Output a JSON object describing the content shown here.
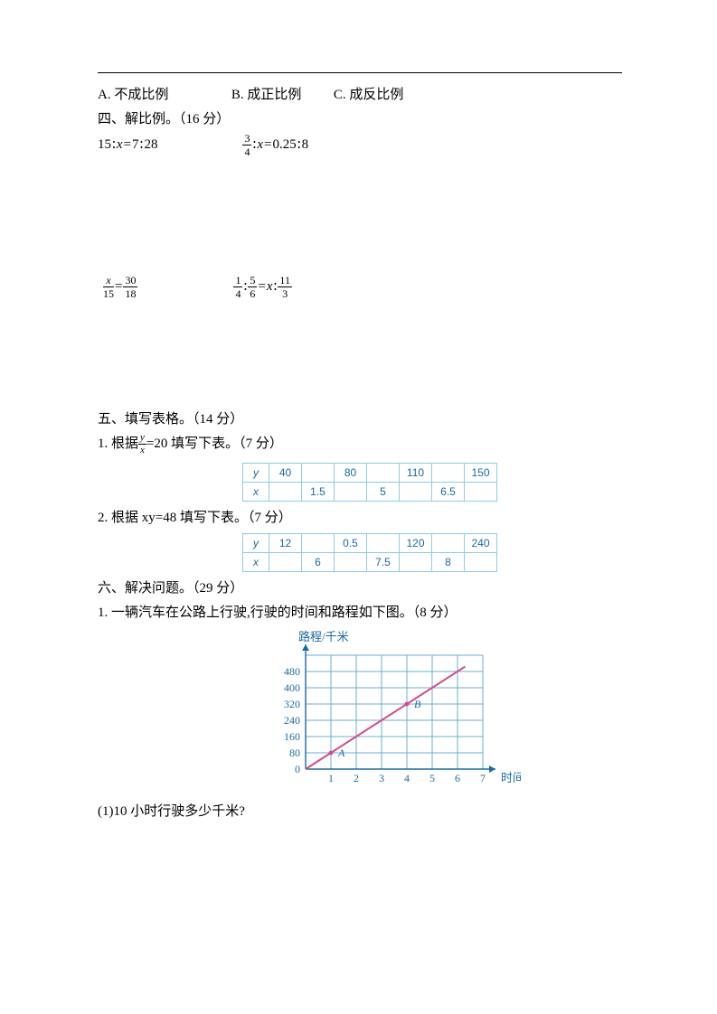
{
  "choices": {
    "a_prefix": "A.",
    "a_text": "不成比例",
    "b_prefix": "B.",
    "b_text": "成正比例",
    "c_prefix": "C.",
    "c_text": "成反比例"
  },
  "section4": {
    "title": "四、解比例。（16 分）",
    "eq1_left": "15",
    "eq1_sep": "∶",
    "eq1_x": "x",
    "eq1_eq": "=",
    "eq1_r1": "7",
    "eq1_r2": "28",
    "eq2_frac_num": "3",
    "eq2_frac_den": "4",
    "eq2_sep": "∶",
    "eq2_x": "x",
    "eq2_eq": "=",
    "eq2_r1": "0.25",
    "eq2_r2": "8",
    "eq3_f1_num": "x",
    "eq3_f1_den": "15",
    "eq3_eq": "=",
    "eq3_f2_num": "30",
    "eq3_f2_den": "18",
    "eq4_f1_num": "1",
    "eq4_f1_den": "4",
    "eq4_sep": "∶",
    "eq4_f2_num": "5",
    "eq4_f2_den": "6",
    "eq4_eq": "=",
    "eq4_x": "x",
    "eq4_f3_num": "11",
    "eq4_f3_den": "3"
  },
  "section5": {
    "title": "五、填写表格。（14 分）",
    "q1_prefix": "1. 根据",
    "q1_frac_num": "y",
    "q1_frac_den": "x",
    "q1_suffix": "=20 填写下表。（7 分）",
    "table1": {
      "row_y_label": "y",
      "row_x_label": "x",
      "y_values": [
        "40",
        "",
        "80",
        "",
        "110",
        "",
        "150"
      ],
      "x_values": [
        "",
        "1.5",
        "",
        "5",
        "",
        "6.5",
        ""
      ],
      "border_color": "#8ecae6",
      "text_color": "#1a6aa5"
    },
    "q2_text": "2. 根据 xy=48 填写下表。（7 分）",
    "table2": {
      "row_y_label": "y",
      "row_x_label": "x",
      "y_values": [
        "12",
        "",
        "0.5",
        "",
        "120",
        "",
        "240"
      ],
      "x_values": [
        "",
        "6",
        "",
        "7.5",
        "",
        "8",
        ""
      ],
      "border_color": "#8ecae6",
      "text_color": "#1a6aa5"
    }
  },
  "section6": {
    "title": "六、解决问题。（29 分）",
    "q1_text": "1. 一辆汽车在公路上行驶,行驶的时间和路程如下图。（8 分）",
    "chart": {
      "type": "line",
      "y_label": "路程/千米",
      "x_label": "时间/时",
      "x_ticks": [
        "1",
        "2",
        "3",
        "4",
        "5",
        "6",
        "7"
      ],
      "y_ticks": [
        "0",
        "80",
        "160",
        "240",
        "320",
        "400",
        "480"
      ],
      "grid_color": "#6aaed6",
      "axis_color": "#1a6aa5",
      "line_color": "#d64a8a",
      "background_color": "#ffffff",
      "text_color": "#1a6aa5",
      "x_cell": 28,
      "y_cell": 18,
      "xlim": [
        0,
        7
      ],
      "ylim": [
        0,
        560
      ],
      "line_points": [
        [
          0,
          0
        ],
        [
          6.3,
          504
        ]
      ],
      "markers": [
        {
          "label": "A",
          "x": 1,
          "y": 80
        },
        {
          "label": "B",
          "x": 4,
          "y": 320
        }
      ],
      "label_fontsize": 12
    },
    "sub_q1": "(1)10 小时行驶多少千米?"
  }
}
